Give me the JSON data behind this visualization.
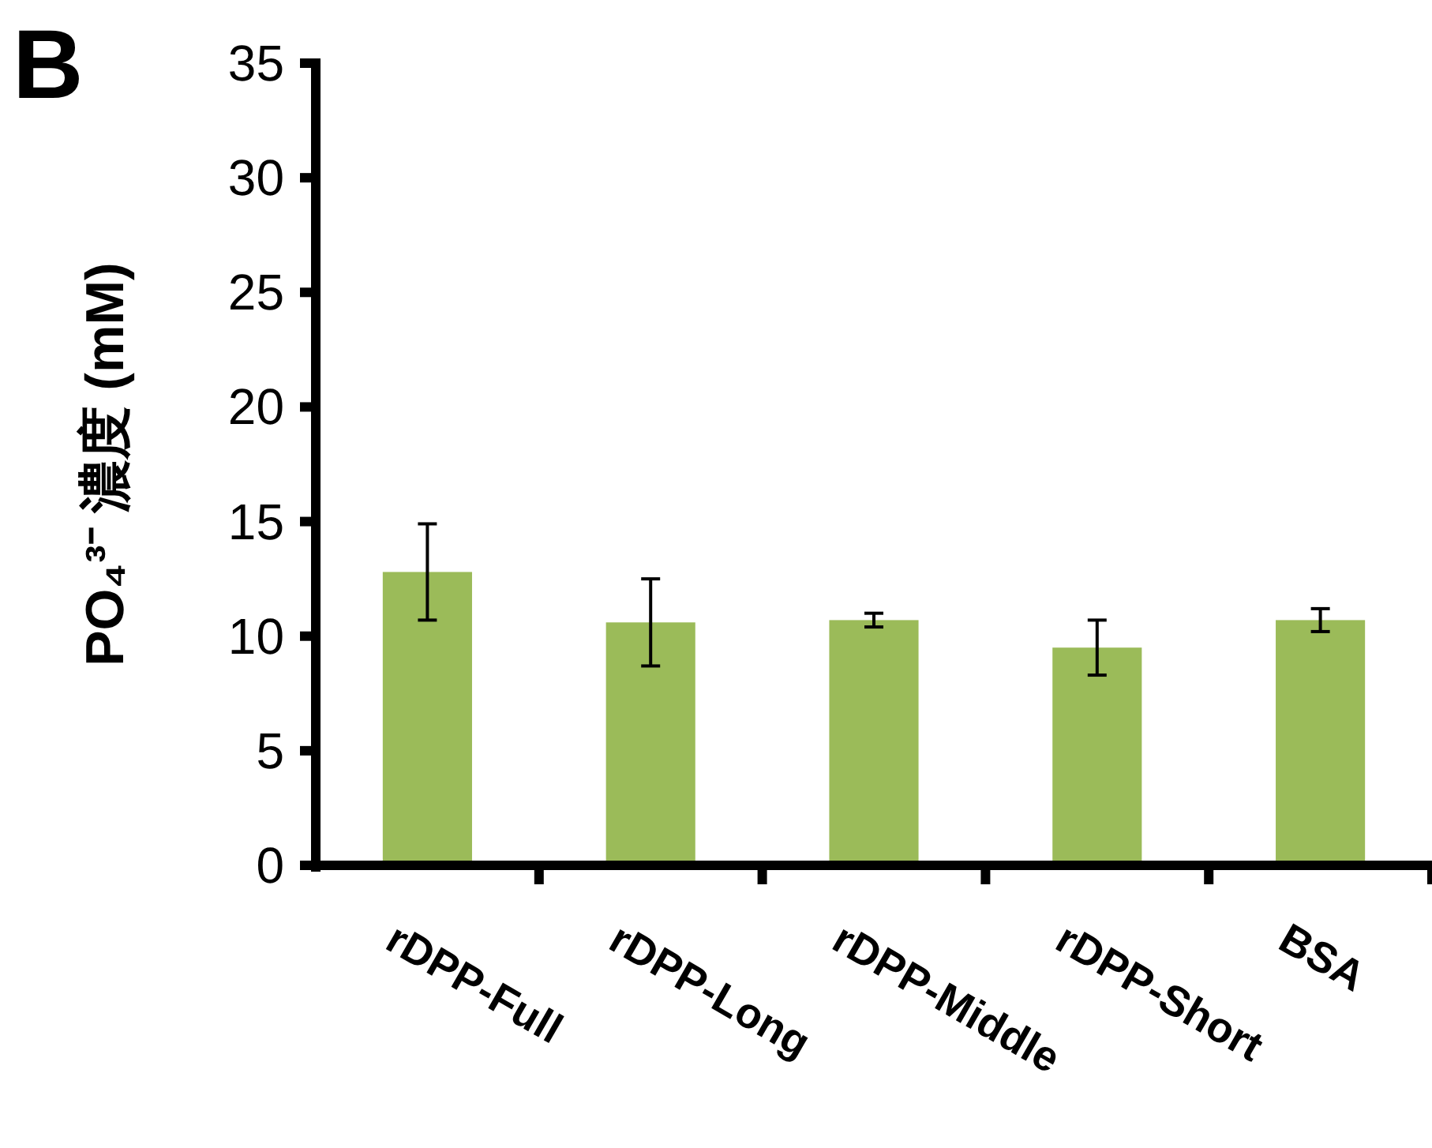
{
  "chart_data": {
    "type": "bar",
    "ylabel": "PO₄³⁻ 濃度 (mM)",
    "annotations": [
      "B"
    ],
    "categories": [
      "rDPP-Full",
      "rDPP-Long",
      "rDPP-Middle",
      "rDPP-Short",
      "BSA"
    ],
    "values": [
      12.8,
      10.6,
      10.7,
      9.5,
      10.7
    ],
    "errors": [
      2.1,
      1.9,
      0.3,
      1.2,
      0.5
    ],
    "color": "#9bbb59",
    "ylim": [
      0,
      35
    ],
    "yticks": [
      0,
      5,
      10,
      15,
      20,
      25,
      30,
      35
    ],
    "grid": false
  }
}
